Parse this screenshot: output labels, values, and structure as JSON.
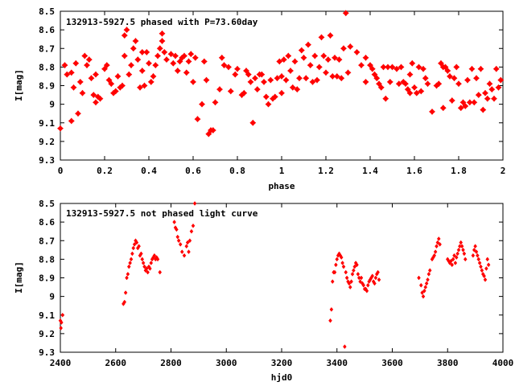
{
  "chart_data": [
    {
      "type": "scatter",
      "title": "132913-5927.5 phased with P=73.60day",
      "xlabel": "phase",
      "ylabel": "I[mag]",
      "xlim": [
        0,
        2
      ],
      "ylim": [
        8.5,
        9.3
      ],
      "y_inverted": true,
      "grid": false,
      "marker_color": "#ff0000",
      "xticks": [
        "0",
        "0.2",
        "0.4",
        "0.6",
        "0.8",
        "1",
        "1.2",
        "1.4",
        "1.6",
        "1.8",
        "2"
      ],
      "yticks": [
        "8.5",
        "8.6",
        "8.7",
        "8.8",
        "8.9",
        "9",
        "9.1",
        "9.2",
        "9.3"
      ],
      "points": [
        [
          0.0,
          9.13
        ],
        [
          0.02,
          8.79
        ],
        [
          0.03,
          8.84
        ],
        [
          0.05,
          9.09
        ],
        [
          0.05,
          8.83
        ],
        [
          0.06,
          8.91
        ],
        [
          0.07,
          8.78
        ],
        [
          0.08,
          9.05
        ],
        [
          0.09,
          8.88
        ],
        [
          0.1,
          8.94
        ],
        [
          0.11,
          8.74
        ],
        [
          0.12,
          8.79
        ],
        [
          0.13,
          8.76
        ],
        [
          0.14,
          8.86
        ],
        [
          0.15,
          8.95
        ],
        [
          0.16,
          8.84
        ],
        [
          0.17,
          8.96
        ],
        [
          0.16,
          8.99
        ],
        [
          0.18,
          8.97
        ],
        [
          0.2,
          8.81
        ],
        [
          0.21,
          8.79
        ],
        [
          0.22,
          8.87
        ],
        [
          0.23,
          8.89
        ],
        [
          0.24,
          8.94
        ],
        [
          0.25,
          8.93
        ],
        [
          0.26,
          8.85
        ],
        [
          0.27,
          8.91
        ],
        [
          0.28,
          8.9
        ],
        [
          0.29,
          8.74
        ],
        [
          0.29,
          8.63
        ],
        [
          0.3,
          8.6
        ],
        [
          0.31,
          8.84
        ],
        [
          0.32,
          8.79
        ],
        [
          0.33,
          8.7
        ],
        [
          0.34,
          8.66
        ],
        [
          0.35,
          8.76
        ],
        [
          0.36,
          8.91
        ],
        [
          0.37,
          8.72
        ],
        [
          0.37,
          8.82
        ],
        [
          0.38,
          8.9
        ],
        [
          0.39,
          8.72
        ],
        [
          0.4,
          8.78
        ],
        [
          0.41,
          8.88
        ],
        [
          0.42,
          8.85
        ],
        [
          0.43,
          8.79
        ],
        [
          0.44,
          8.74
        ],
        [
          0.45,
          8.7
        ],
        [
          0.46,
          8.62
        ],
        [
          0.46,
          8.66
        ],
        [
          0.47,
          8.72
        ],
        [
          0.48,
          8.76
        ],
        [
          0.5,
          8.73
        ],
        [
          0.51,
          8.78
        ],
        [
          0.52,
          8.74
        ],
        [
          0.53,
          8.82
        ],
        [
          0.54,
          8.77
        ],
        [
          0.55,
          8.75
        ],
        [
          0.56,
          8.74
        ],
        [
          0.57,
          8.83
        ],
        [
          0.58,
          8.77
        ],
        [
          0.59,
          8.73
        ],
        [
          0.6,
          8.88
        ],
        [
          0.61,
          8.75
        ],
        [
          0.62,
          9.08
        ],
        [
          0.64,
          9.0
        ],
        [
          0.65,
          8.77
        ],
        [
          0.66,
          8.87
        ],
        [
          0.67,
          9.16
        ],
        [
          0.68,
          9.14
        ],
        [
          0.69,
          9.14
        ],
        [
          0.7,
          8.99
        ],
        [
          0.72,
          8.92
        ],
        [
          0.73,
          8.75
        ],
        [
          0.74,
          8.79
        ],
        [
          0.76,
          8.8
        ],
        [
          0.77,
          8.93
        ],
        [
          0.79,
          8.84
        ],
        [
          0.8,
          8.81
        ],
        [
          0.82,
          8.95
        ],
        [
          0.83,
          8.94
        ],
        [
          0.84,
          8.82
        ],
        [
          0.85,
          8.84
        ],
        [
          0.86,
          8.88
        ],
        [
          0.87,
          9.1
        ],
        [
          0.88,
          8.86
        ],
        [
          0.89,
          8.92
        ],
        [
          0.9,
          8.84
        ],
        [
          0.91,
          8.84
        ],
        [
          0.92,
          8.88
        ],
        [
          0.93,
          8.96
        ],
        [
          0.94,
          9.0
        ],
        [
          0.95,
          8.87
        ],
        [
          0.96,
          8.97
        ],
        [
          0.97,
          8.96
        ],
        [
          0.98,
          8.86
        ],
        [
          0.99,
          8.77
        ],
        [
          1.0,
          8.85
        ],
        [
          1.0,
          8.94
        ],
        [
          1.01,
          8.76
        ],
        [
          1.02,
          8.87
        ],
        [
          1.03,
          8.74
        ],
        [
          1.04,
          8.82
        ],
        [
          1.05,
          8.91
        ],
        [
          1.06,
          8.77
        ],
        [
          1.07,
          8.92
        ],
        [
          1.08,
          8.86
        ],
        [
          1.09,
          8.71
        ],
        [
          1.1,
          8.75
        ],
        [
          1.11,
          8.86
        ],
        [
          1.12,
          8.68
        ],
        [
          1.13,
          8.79
        ],
        [
          1.14,
          8.88
        ],
        [
          1.15,
          8.74
        ],
        [
          1.16,
          8.87
        ],
        [
          1.17,
          8.8
        ],
        [
          1.18,
          8.64
        ],
        [
          1.19,
          8.74
        ],
        [
          1.2,
          8.83
        ],
        [
          1.21,
          8.76
        ],
        [
          1.22,
          8.63
        ],
        [
          1.23,
          8.85
        ],
        [
          1.24,
          8.75
        ],
        [
          1.25,
          8.85
        ],
        [
          1.26,
          8.76
        ],
        [
          1.27,
          8.86
        ],
        [
          1.28,
          8.7
        ],
        [
          1.29,
          8.51
        ],
        [
          1.3,
          8.83
        ],
        [
          1.31,
          8.69
        ],
        [
          1.34,
          8.72
        ],
        [
          1.36,
          8.79
        ],
        [
          1.38,
          8.88
        ],
        [
          1.38,
          8.75
        ],
        [
          1.4,
          8.79
        ],
        [
          1.41,
          8.81
        ],
        [
          1.42,
          8.84
        ],
        [
          1.43,
          8.86
        ],
        [
          1.44,
          8.89
        ],
        [
          1.45,
          8.91
        ],
        [
          1.46,
          8.8
        ],
        [
          1.47,
          8.97
        ],
        [
          1.48,
          8.8
        ],
        [
          1.49,
          8.88
        ],
        [
          1.5,
          8.8
        ],
        [
          1.52,
          8.81
        ],
        [
          1.53,
          8.89
        ],
        [
          1.54,
          8.8
        ],
        [
          1.55,
          8.88
        ],
        [
          1.56,
          8.89
        ],
        [
          1.57,
          8.92
        ],
        [
          1.58,
          8.84
        ],
        [
          1.58,
          8.94
        ],
        [
          1.59,
          8.78
        ],
        [
          1.6,
          8.91
        ],
        [
          1.61,
          8.94
        ],
        [
          1.62,
          8.8
        ],
        [
          1.63,
          8.93
        ],
        [
          1.64,
          8.81
        ],
        [
          1.65,
          8.86
        ],
        [
          1.66,
          8.89
        ],
        [
          1.68,
          9.04
        ],
        [
          1.7,
          8.9
        ],
        [
          1.71,
          8.89
        ],
        [
          1.72,
          8.78
        ],
        [
          1.73,
          8.8
        ],
        [
          1.73,
          9.02
        ],
        [
          1.74,
          8.8
        ],
        [
          1.75,
          8.82
        ],
        [
          1.76,
          8.85
        ],
        [
          1.77,
          8.98
        ],
        [
          1.78,
          8.86
        ],
        [
          1.79,
          8.8
        ],
        [
          1.8,
          8.89
        ],
        [
          1.81,
          9.02
        ],
        [
          1.82,
          8.99
        ],
        [
          1.83,
          9.01
        ],
        [
          1.84,
          8.87
        ],
        [
          1.85,
          8.99
        ],
        [
          1.86,
          8.81
        ],
        [
          1.87,
          8.99
        ],
        [
          1.88,
          8.86
        ],
        [
          1.89,
          8.95
        ],
        [
          1.9,
          8.81
        ],
        [
          1.91,
          9.03
        ],
        [
          1.92,
          8.94
        ],
        [
          1.93,
          8.97
        ],
        [
          1.94,
          8.89
        ],
        [
          1.95,
          8.92
        ],
        [
          1.96,
          8.97
        ],
        [
          1.97,
          8.81
        ],
        [
          1.98,
          8.91
        ],
        [
          1.99,
          8.87
        ]
      ]
    },
    {
      "type": "scatter",
      "title": "132913-5927.5 not phased light curve",
      "xlabel": "hjd0",
      "ylabel": "I[mag]",
      "xlim": [
        2400,
        4000
      ],
      "ylim": [
        8.5,
        9.3
      ],
      "y_inverted": true,
      "grid": false,
      "marker_color": "#ff0000",
      "xticks": [
        "2400",
        "2600",
        "2800",
        "3000",
        "3200",
        "3400",
        "3600",
        "3800",
        "4000"
      ],
      "yticks": [
        "8.5",
        "8.6",
        "8.7",
        "8.8",
        "8.9",
        "9",
        "9.1",
        "9.2",
        "9.3"
      ],
      "points": [
        [
          2400,
          9.13
        ],
        [
          2402,
          9.17
        ],
        [
          2404,
          9.14
        ],
        [
          2408,
          9.1
        ],
        [
          2628,
          9.04
        ],
        [
          2632,
          9.03
        ],
        [
          2636,
          8.98
        ],
        [
          2640,
          8.9
        ],
        [
          2644,
          8.88
        ],
        [
          2648,
          8.84
        ],
        [
          2652,
          8.82
        ],
        [
          2656,
          8.8
        ],
        [
          2660,
          8.77
        ],
        [
          2664,
          8.74
        ],
        [
          2668,
          8.72
        ],
        [
          2672,
          8.7
        ],
        [
          2676,
          8.71
        ],
        [
          2680,
          8.74
        ],
        [
          2684,
          8.73
        ],
        [
          2688,
          8.78
        ],
        [
          2692,
          8.77
        ],
        [
          2696,
          8.8
        ],
        [
          2700,
          8.82
        ],
        [
          2704,
          8.84
        ],
        [
          2708,
          8.86
        ],
        [
          2712,
          8.85
        ],
        [
          2716,
          8.87
        ],
        [
          2720,
          8.84
        ],
        [
          2724,
          8.85
        ],
        [
          2728,
          8.82
        ],
        [
          2732,
          8.8
        ],
        [
          2736,
          8.79
        ],
        [
          2740,
          8.78
        ],
        [
          2744,
          8.8
        ],
        [
          2748,
          8.79
        ],
        [
          2752,
          8.8
        ],
        [
          2760,
          8.87
        ],
        [
          2812,
          8.6
        ],
        [
          2816,
          8.63
        ],
        [
          2820,
          8.64
        ],
        [
          2824,
          8.68
        ],
        [
          2828,
          8.7
        ],
        [
          2834,
          8.72
        ],
        [
          2840,
          8.76
        ],
        [
          2848,
          8.78
        ],
        [
          2856,
          8.73
        ],
        [
          2860,
          8.71
        ],
        [
          2864,
          8.76
        ],
        [
          2868,
          8.7
        ],
        [
          2874,
          8.65
        ],
        [
          2880,
          8.62
        ],
        [
          2886,
          8.5
        ],
        [
          3376,
          9.13
        ],
        [
          3380,
          9.07
        ],
        [
          3384,
          8.92
        ],
        [
          3388,
          8.87
        ],
        [
          3392,
          8.87
        ],
        [
          3396,
          8.83
        ],
        [
          3400,
          8.8
        ],
        [
          3404,
          8.78
        ],
        [
          3408,
          8.77
        ],
        [
          3412,
          8.78
        ],
        [
          3416,
          8.79
        ],
        [
          3420,
          8.82
        ],
        [
          3424,
          8.84
        ],
        [
          3428,
          9.27
        ],
        [
          3432,
          8.87
        ],
        [
          3436,
          8.9
        ],
        [
          3440,
          8.92
        ],
        [
          3444,
          8.93
        ],
        [
          3448,
          8.95
        ],
        [
          3452,
          8.92
        ],
        [
          3456,
          8.88
        ],
        [
          3460,
          8.86
        ],
        [
          3464,
          8.84
        ],
        [
          3468,
          8.82
        ],
        [
          3472,
          8.83
        ],
        [
          3476,
          8.88
        ],
        [
          3480,
          8.9
        ],
        [
          3484,
          8.92
        ],
        [
          3488,
          8.9
        ],
        [
          3492,
          8.93
        ],
        [
          3496,
          8.94
        ],
        [
          3500,
          8.96
        ],
        [
          3504,
          8.96
        ],
        [
          3508,
          8.97
        ],
        [
          3512,
          8.94
        ],
        [
          3516,
          8.92
        ],
        [
          3520,
          8.91
        ],
        [
          3524,
          8.9
        ],
        [
          3528,
          8.89
        ],
        [
          3532,
          8.92
        ],
        [
          3536,
          8.93
        ],
        [
          3540,
          8.9
        ],
        [
          3544,
          8.88
        ],
        [
          3548,
          8.87
        ],
        [
          3552,
          8.91
        ],
        [
          3696,
          8.9
        ],
        [
          3704,
          8.94
        ],
        [
          3708,
          8.98
        ],
        [
          3712,
          9.0
        ],
        [
          3716,
          8.97
        ],
        [
          3720,
          8.95
        ],
        [
          3724,
          8.93
        ],
        [
          3728,
          8.91
        ],
        [
          3732,
          8.88
        ],
        [
          3736,
          8.86
        ],
        [
          3744,
          8.8
        ],
        [
          3748,
          8.79
        ],
        [
          3752,
          8.78
        ],
        [
          3756,
          8.76
        ],
        [
          3760,
          8.73
        ],
        [
          3764,
          8.71
        ],
        [
          3768,
          8.69
        ],
        [
          3772,
          8.72
        ],
        [
          3800,
          8.8
        ],
        [
          3804,
          8.81
        ],
        [
          3808,
          8.82
        ],
        [
          3812,
          8.81
        ],
        [
          3816,
          8.83
        ],
        [
          3820,
          8.8
        ],
        [
          3824,
          8.78
        ],
        [
          3828,
          8.82
        ],
        [
          3832,
          8.79
        ],
        [
          3836,
          8.77
        ],
        [
          3840,
          8.75
        ],
        [
          3844,
          8.73
        ],
        [
          3848,
          8.71
        ],
        [
          3852,
          8.73
        ],
        [
          3856,
          8.75
        ],
        [
          3860,
          8.77
        ],
        [
          3864,
          8.8
        ],
        [
          3892,
          8.78
        ],
        [
          3896,
          8.75
        ],
        [
          3900,
          8.73
        ],
        [
          3904,
          8.76
        ],
        [
          3908,
          8.78
        ],
        [
          3912,
          8.8
        ],
        [
          3916,
          8.82
        ],
        [
          3920,
          8.84
        ],
        [
          3924,
          8.86
        ],
        [
          3928,
          8.88
        ],
        [
          3932,
          8.89
        ],
        [
          3936,
          8.91
        ],
        [
          3940,
          8.85
        ],
        [
          3944,
          8.8
        ],
        [
          3948,
          8.83
        ]
      ]
    }
  ]
}
